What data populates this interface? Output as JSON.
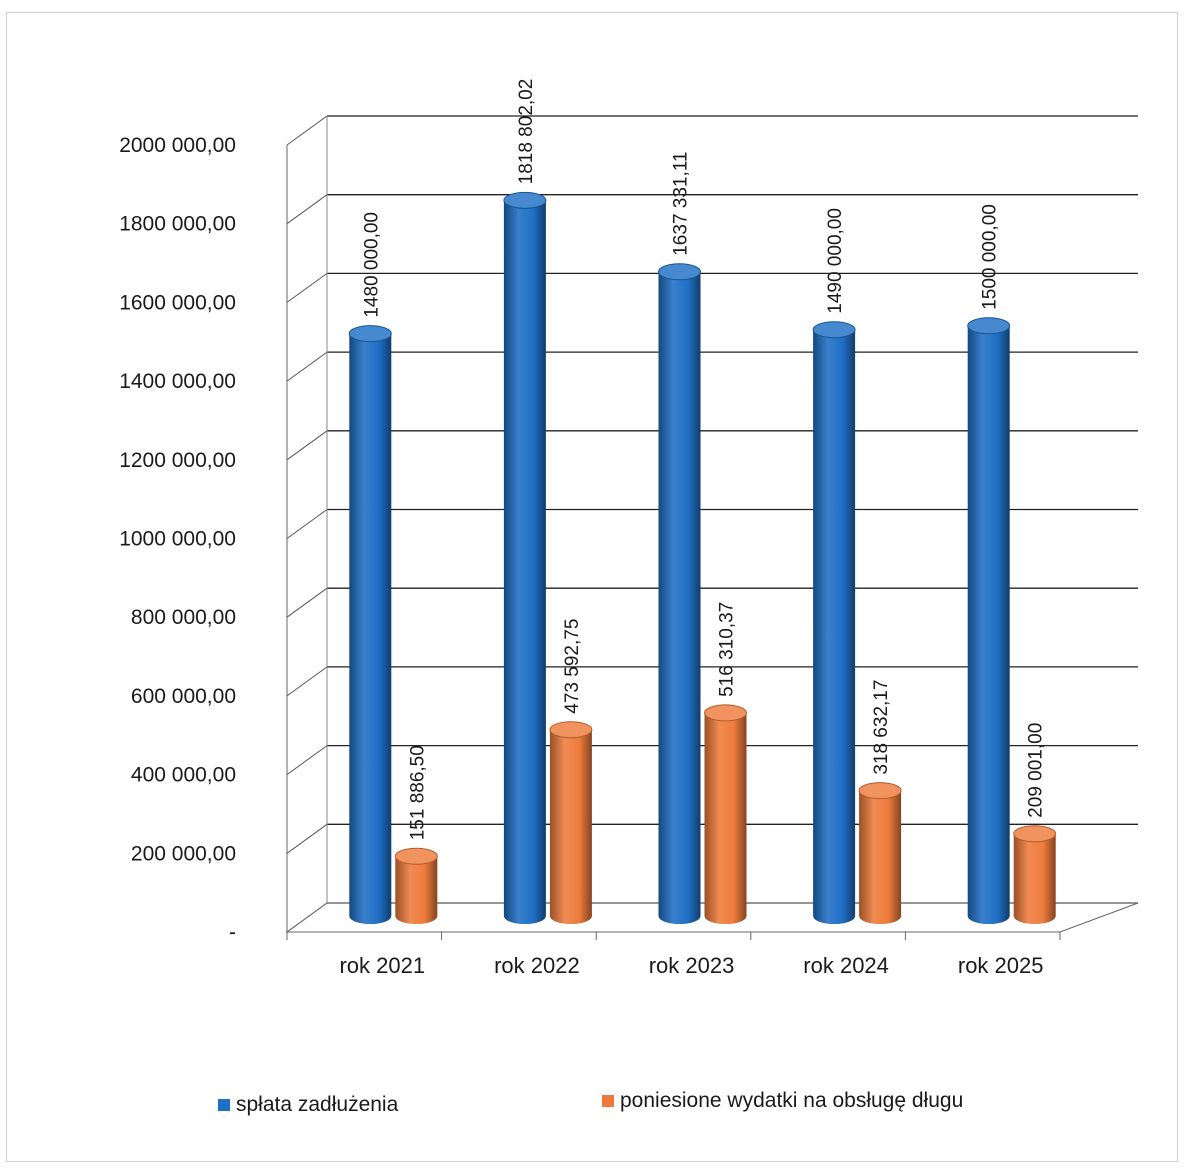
{
  "chart_data": {
    "type": "bar",
    "style": "3d-cylinder",
    "categories": [
      "rok 2021",
      "rok 2022",
      "rok 2023",
      "rok 2024",
      "rok 2025"
    ],
    "series": [
      {
        "name": "spłata zadłużenia",
        "color": "#1f6fc5",
        "values": [
          1480000.0,
          1818802.02,
          1637331.11,
          1490000.0,
          1500000.0
        ],
        "labels": [
          "1480 000,00",
          "1818 802,02",
          "1637 331,11",
          "1490 000,00",
          "1500 000,00"
        ]
      },
      {
        "name": "poniesione wydatki na obsługę długu",
        "color": "#ee7b3c",
        "values": [
          151886.5,
          473592.75,
          516310.37,
          318632.17,
          209001.0
        ],
        "labels": [
          "151 886,50",
          "473 592,75",
          "516 310,37",
          "318 632,17",
          "209 001,00"
        ]
      }
    ],
    "yticks": [
      {
        "value": 0,
        "label": "-"
      },
      {
        "value": 200000,
        "label": "200 000,00"
      },
      {
        "value": 400000,
        "label": "400 000,00"
      },
      {
        "value": 600000,
        "label": "600 000,00"
      },
      {
        "value": 800000,
        "label": "800 000,00"
      },
      {
        "value": 1000000,
        "label": "1000 000,00"
      },
      {
        "value": 1200000,
        "label": "1200 000,00"
      },
      {
        "value": 1400000,
        "label": "1400 000,00"
      },
      {
        "value": 1600000,
        "label": "1600 000,00"
      },
      {
        "value": 1800000,
        "label": "1800 000,00"
      },
      {
        "value": 2000000,
        "label": "2000 000,00"
      }
    ],
    "ylim": [
      0,
      2000000
    ],
    "grid": true,
    "legend_position": "bottom"
  }
}
